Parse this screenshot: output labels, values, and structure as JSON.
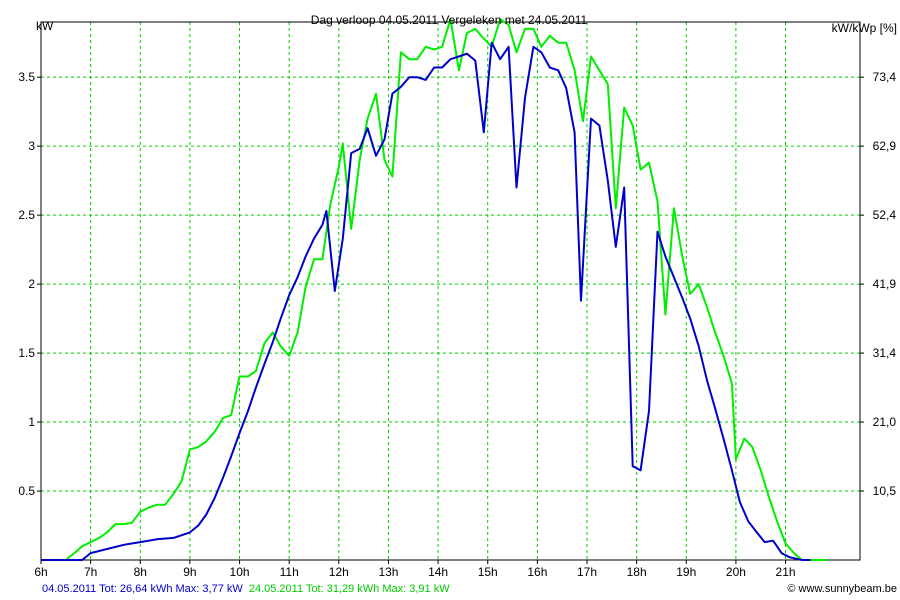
{
  "chart_data": {
    "type": "line",
    "title": "Dag  verloop 04.05.2011   Vergeleken met 24.05.2011",
    "ylabel_left": "kW",
    "ylabel_right": "kW/kWp [%]",
    "xlim": [
      6,
      22.5
    ],
    "ylim": [
      0,
      3.9
    ],
    "grid": true,
    "x_ticks": [
      {
        "v": 6,
        "label": "6h"
      },
      {
        "v": 7,
        "label": "7h"
      },
      {
        "v": 8,
        "label": "8h"
      },
      {
        "v": 9,
        "label": "9h"
      },
      {
        "v": 10,
        "label": "10h"
      },
      {
        "v": 11,
        "label": "11h"
      },
      {
        "v": 12,
        "label": "12h"
      },
      {
        "v": 13,
        "label": "13h"
      },
      {
        "v": 14,
        "label": "14h"
      },
      {
        "v": 15,
        "label": "15h"
      },
      {
        "v": 16,
        "label": "16h"
      },
      {
        "v": 17,
        "label": "17h"
      },
      {
        "v": 18,
        "label": "18h"
      },
      {
        "v": 19,
        "label": "19h"
      },
      {
        "v": 20,
        "label": "20h"
      },
      {
        "v": 21,
        "label": "21h"
      }
    ],
    "y_ticks_left": [
      {
        "v": 0.5,
        "label": "0.5"
      },
      {
        "v": 1,
        "label": "1"
      },
      {
        "v": 1.5,
        "label": "1.5"
      },
      {
        "v": 2,
        "label": "2"
      },
      {
        "v": 2.5,
        "label": "2.5"
      },
      {
        "v": 3,
        "label": "3"
      },
      {
        "v": 3.5,
        "label": "3.5"
      }
    ],
    "y_ticks_right": [
      {
        "v": 0.5,
        "label": "10,5"
      },
      {
        "v": 1,
        "label": "21,0"
      },
      {
        "v": 1.5,
        "label": "31,4"
      },
      {
        "v": 2,
        "label": "41,9"
      },
      {
        "v": 2.5,
        "label": "52,4"
      },
      {
        "v": 3,
        "label": "62,9"
      },
      {
        "v": 3.5,
        "label": "73,4"
      }
    ],
    "series": [
      {
        "name": "04.05.2011 Tot: 26,64 kWh Max: 3,77 kW",
        "color": "#0000cc",
        "points": [
          [
            6.0,
            0
          ],
          [
            6.83,
            0
          ],
          [
            7.0,
            0.05
          ],
          [
            7.33,
            0.08
          ],
          [
            7.67,
            0.11
          ],
          [
            8.0,
            0.13
          ],
          [
            8.33,
            0.15
          ],
          [
            8.67,
            0.16
          ],
          [
            9.0,
            0.2
          ],
          [
            9.17,
            0.25
          ],
          [
            9.33,
            0.33
          ],
          [
            9.5,
            0.45
          ],
          [
            9.67,
            0.6
          ],
          [
            9.83,
            0.75
          ],
          [
            10.0,
            0.92
          ],
          [
            10.17,
            1.08
          ],
          [
            10.33,
            1.25
          ],
          [
            10.5,
            1.42
          ],
          [
            10.67,
            1.58
          ],
          [
            10.83,
            1.75
          ],
          [
            11.0,
            1.92
          ],
          [
            11.17,
            2.05
          ],
          [
            11.33,
            2.2
          ],
          [
            11.5,
            2.33
          ],
          [
            11.67,
            2.43
          ],
          [
            11.75,
            2.53
          ],
          [
            11.92,
            1.95
          ],
          [
            12.08,
            2.33
          ],
          [
            12.25,
            2.95
          ],
          [
            12.42,
            2.98
          ],
          [
            12.58,
            3.13
          ],
          [
            12.75,
            2.93
          ],
          [
            12.92,
            3.05
          ],
          [
            13.08,
            3.38
          ],
          [
            13.25,
            3.43
          ],
          [
            13.42,
            3.5
          ],
          [
            13.58,
            3.5
          ],
          [
            13.75,
            3.48
          ],
          [
            13.92,
            3.57
          ],
          [
            14.08,
            3.57
          ],
          [
            14.25,
            3.63
          ],
          [
            14.42,
            3.65
          ],
          [
            14.58,
            3.67
          ],
          [
            14.75,
            3.62
          ],
          [
            14.92,
            3.1
          ],
          [
            15.08,
            3.75
          ],
          [
            15.25,
            3.63
          ],
          [
            15.42,
            3.72
          ],
          [
            15.58,
            2.7
          ],
          [
            15.75,
            3.35
          ],
          [
            15.92,
            3.72
          ],
          [
            16.08,
            3.68
          ],
          [
            16.25,
            3.57
          ],
          [
            16.42,
            3.55
          ],
          [
            16.58,
            3.42
          ],
          [
            16.75,
            3.1
          ],
          [
            16.88,
            1.88
          ],
          [
            17.08,
            3.2
          ],
          [
            17.25,
            3.15
          ],
          [
            17.42,
            2.75
          ],
          [
            17.58,
            2.27
          ],
          [
            17.75,
            2.7
          ],
          [
            17.92,
            0.68
          ],
          [
            18.08,
            0.65
          ],
          [
            18.25,
            1.08
          ],
          [
            18.42,
            2.38
          ],
          [
            18.58,
            2.2
          ],
          [
            18.75,
            2.05
          ],
          [
            18.92,
            1.9
          ],
          [
            19.08,
            1.75
          ],
          [
            19.25,
            1.55
          ],
          [
            19.42,
            1.3
          ],
          [
            19.58,
            1.1
          ],
          [
            19.75,
            0.88
          ],
          [
            19.92,
            0.65
          ],
          [
            20.08,
            0.42
          ],
          [
            20.25,
            0.28
          ],
          [
            20.42,
            0.2
          ],
          [
            20.58,
            0.13
          ],
          [
            20.75,
            0.14
          ],
          [
            20.92,
            0.05
          ],
          [
            21.08,
            0.02
          ],
          [
            21.33,
            0
          ],
          [
            21.5,
            0
          ]
        ]
      },
      {
        "name": "24.05.2011 Tot: 31,29 kWh Max: 3,91 kW",
        "color": "#00ee00",
        "points": [
          [
            6.0,
            0
          ],
          [
            6.5,
            0
          ],
          [
            6.67,
            0.05
          ],
          [
            6.83,
            0.1
          ],
          [
            7.0,
            0.13
          ],
          [
            7.17,
            0.16
          ],
          [
            7.33,
            0.2
          ],
          [
            7.5,
            0.26
          ],
          [
            7.67,
            0.26
          ],
          [
            7.83,
            0.27
          ],
          [
            8.0,
            0.35
          ],
          [
            8.17,
            0.38
          ],
          [
            8.33,
            0.4
          ],
          [
            8.5,
            0.4
          ],
          [
            8.67,
            0.48
          ],
          [
            8.83,
            0.57
          ],
          [
            9.0,
            0.8
          ],
          [
            9.17,
            0.82
          ],
          [
            9.33,
            0.86
          ],
          [
            9.5,
            0.93
          ],
          [
            9.67,
            1.03
          ],
          [
            9.83,
            1.05
          ],
          [
            10.0,
            1.33
          ],
          [
            10.17,
            1.33
          ],
          [
            10.33,
            1.37
          ],
          [
            10.5,
            1.57
          ],
          [
            10.67,
            1.65
          ],
          [
            10.83,
            1.55
          ],
          [
            11.0,
            1.48
          ],
          [
            11.17,
            1.65
          ],
          [
            11.33,
            1.98
          ],
          [
            11.5,
            2.18
          ],
          [
            11.67,
            2.18
          ],
          [
            11.83,
            2.58
          ],
          [
            12.0,
            2.85
          ],
          [
            12.08,
            3.02
          ],
          [
            12.25,
            2.4
          ],
          [
            12.42,
            2.9
          ],
          [
            12.58,
            3.2
          ],
          [
            12.75,
            3.38
          ],
          [
            12.92,
            2.9
          ],
          [
            13.08,
            2.78
          ],
          [
            13.25,
            3.68
          ],
          [
            13.42,
            3.63
          ],
          [
            13.58,
            3.63
          ],
          [
            13.75,
            3.72
          ],
          [
            13.92,
            3.7
          ],
          [
            14.08,
            3.72
          ],
          [
            14.25,
            3.92
          ],
          [
            14.42,
            3.55
          ],
          [
            14.58,
            3.82
          ],
          [
            14.75,
            3.85
          ],
          [
            14.92,
            3.78
          ],
          [
            15.08,
            3.72
          ],
          [
            15.25,
            3.92
          ],
          [
            15.42,
            3.88
          ],
          [
            15.58,
            3.68
          ],
          [
            15.75,
            3.85
          ],
          [
            15.92,
            3.85
          ],
          [
            16.08,
            3.72
          ],
          [
            16.25,
            3.8
          ],
          [
            16.42,
            3.75
          ],
          [
            16.58,
            3.75
          ],
          [
            16.75,
            3.55
          ],
          [
            16.92,
            3.18
          ],
          [
            17.08,
            3.65
          ],
          [
            17.25,
            3.55
          ],
          [
            17.42,
            3.45
          ],
          [
            17.58,
            2.55
          ],
          [
            17.75,
            3.28
          ],
          [
            17.92,
            3.15
          ],
          [
            18.08,
            2.83
          ],
          [
            18.25,
            2.88
          ],
          [
            18.42,
            2.6
          ],
          [
            18.58,
            1.78
          ],
          [
            18.75,
            2.55
          ],
          [
            18.92,
            2.2
          ],
          [
            19.08,
            1.93
          ],
          [
            19.25,
            2.0
          ],
          [
            19.42,
            1.83
          ],
          [
            19.58,
            1.65
          ],
          [
            19.75,
            1.48
          ],
          [
            19.92,
            1.28
          ],
          [
            20.0,
            0.73
          ],
          [
            20.17,
            0.88
          ],
          [
            20.33,
            0.82
          ],
          [
            20.5,
            0.65
          ],
          [
            20.67,
            0.45
          ],
          [
            20.83,
            0.28
          ],
          [
            21.0,
            0.12
          ],
          [
            21.17,
            0.05
          ],
          [
            21.33,
            0
          ],
          [
            21.83,
            0
          ]
        ]
      }
    ]
  },
  "footer": {
    "legend_blue": "04.05.2011 Tot: 26,64 kWh Max: 3,77 kW",
    "legend_green": "24.05.2011 Tot: 31,29 kWh Max: 3,91 kW",
    "credit": "© www.sunnybeam.be"
  }
}
